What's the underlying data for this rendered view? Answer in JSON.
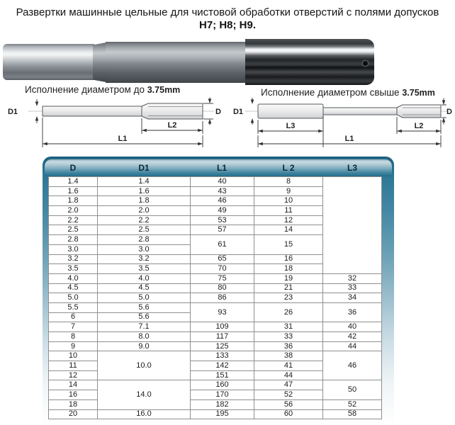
{
  "title": {
    "line1": "Развертки машинные цельные для чистовой обработки отверстий с полями допусков",
    "line2": "H7; H8; H9."
  },
  "captions": {
    "left_text": "Исполнение диаметром до",
    "left_value": "3.75mm",
    "right_text": "Исполнение диаметром свыше",
    "right_value": "3.75mm"
  },
  "drawing_labels": {
    "d1": "D1",
    "d": "D",
    "l1": "L1",
    "l2": "L2",
    "l3": "L3"
  },
  "colors": {
    "frame_teal": "#2d7795",
    "header_teal_dark": "#2b7392",
    "header_teal_light": "#c9dae1"
  },
  "table": {
    "headers": [
      "D",
      "D1",
      "L1",
      "L 2",
      "L3"
    ],
    "rows": [
      [
        {
          "v": "1.4"
        },
        {
          "v": "1.4"
        },
        {
          "v": "40"
        },
        {
          "v": "8"
        },
        {
          "v": "",
          "rs": 10
        }
      ],
      [
        {
          "v": "1.6"
        },
        {
          "v": "1.6"
        },
        {
          "v": "43"
        },
        {
          "v": "9"
        }
      ],
      [
        {
          "v": "1.8"
        },
        {
          "v": "1.8"
        },
        {
          "v": "46"
        },
        {
          "v": "10"
        }
      ],
      [
        {
          "v": "2.0"
        },
        {
          "v": "2.0"
        },
        {
          "v": "49"
        },
        {
          "v": "11"
        }
      ],
      [
        {
          "v": "2.2"
        },
        {
          "v": "2.2"
        },
        {
          "v": "53"
        },
        {
          "v": "12"
        }
      ],
      [
        {
          "v": "2.5"
        },
        {
          "v": "2.5"
        },
        {
          "v": "57"
        },
        {
          "v": "14"
        }
      ],
      [
        {
          "v": "2.8"
        },
        {
          "v": "2.8"
        },
        {
          "v": "61",
          "rs": 2
        },
        {
          "v": "15",
          "rs": 2
        }
      ],
      [
        {
          "v": "3.0"
        },
        {
          "v": "3.0"
        }
      ],
      [
        {
          "v": "3.2"
        },
        {
          "v": "3.2"
        },
        {
          "v": "65"
        },
        {
          "v": "16"
        }
      ],
      [
        {
          "v": "3.5"
        },
        {
          "v": "3.5"
        },
        {
          "v": "70"
        },
        {
          "v": "18"
        }
      ],
      [
        {
          "v": "4.0"
        },
        {
          "v": "4.0"
        },
        {
          "v": "75"
        },
        {
          "v": "19"
        },
        {
          "v": "32"
        }
      ],
      [
        {
          "v": "4.5"
        },
        {
          "v": "4.5"
        },
        {
          "v": "80"
        },
        {
          "v": "21"
        },
        {
          "v": "33"
        }
      ],
      [
        {
          "v": "5.0"
        },
        {
          "v": "5.0"
        },
        {
          "v": "86"
        },
        {
          "v": "23"
        },
        {
          "v": "34"
        }
      ],
      [
        {
          "v": "5.5"
        },
        {
          "v": "5.6"
        },
        {
          "v": "93",
          "rs": 2
        },
        {
          "v": "26",
          "rs": 2
        },
        {
          "v": "36",
          "rs": 2
        }
      ],
      [
        {
          "v": "6"
        },
        {
          "v": "5.6"
        }
      ],
      [
        {
          "v": "7"
        },
        {
          "v": "7.1"
        },
        {
          "v": "109"
        },
        {
          "v": "31"
        },
        {
          "v": "40"
        }
      ],
      [
        {
          "v": "8"
        },
        {
          "v": "8.0"
        },
        {
          "v": "117"
        },
        {
          "v": "33"
        },
        {
          "v": "42"
        }
      ],
      [
        {
          "v": "9"
        },
        {
          "v": "9.0"
        },
        {
          "v": "125"
        },
        {
          "v": "36"
        },
        {
          "v": "44"
        }
      ],
      [
        {
          "v": "10"
        },
        {
          "v": "10.0",
          "rs": 3
        },
        {
          "v": "133"
        },
        {
          "v": "38"
        },
        {
          "v": "46",
          "rs": 3
        }
      ],
      [
        {
          "v": "11"
        },
        {
          "v": "142"
        },
        {
          "v": "41"
        }
      ],
      [
        {
          "v": "12"
        },
        {
          "v": "151"
        },
        {
          "v": "44"
        }
      ],
      [
        {
          "v": "14"
        },
        {
          "v": "14.0",
          "rs": 3
        },
        {
          "v": "160"
        },
        {
          "v": "47"
        },
        {
          "v": "50",
          "rs": 2
        }
      ],
      [
        {
          "v": "16"
        },
        {
          "v": "170"
        },
        {
          "v": "52"
        }
      ],
      [
        {
          "v": "18"
        },
        {
          "v": "182"
        },
        {
          "v": "56"
        },
        {
          "v": "52"
        }
      ],
      [
        {
          "v": "20"
        },
        {
          "v": "16.0"
        },
        {
          "v": "195"
        },
        {
          "v": "60"
        },
        {
          "v": "58"
        }
      ]
    ]
  }
}
